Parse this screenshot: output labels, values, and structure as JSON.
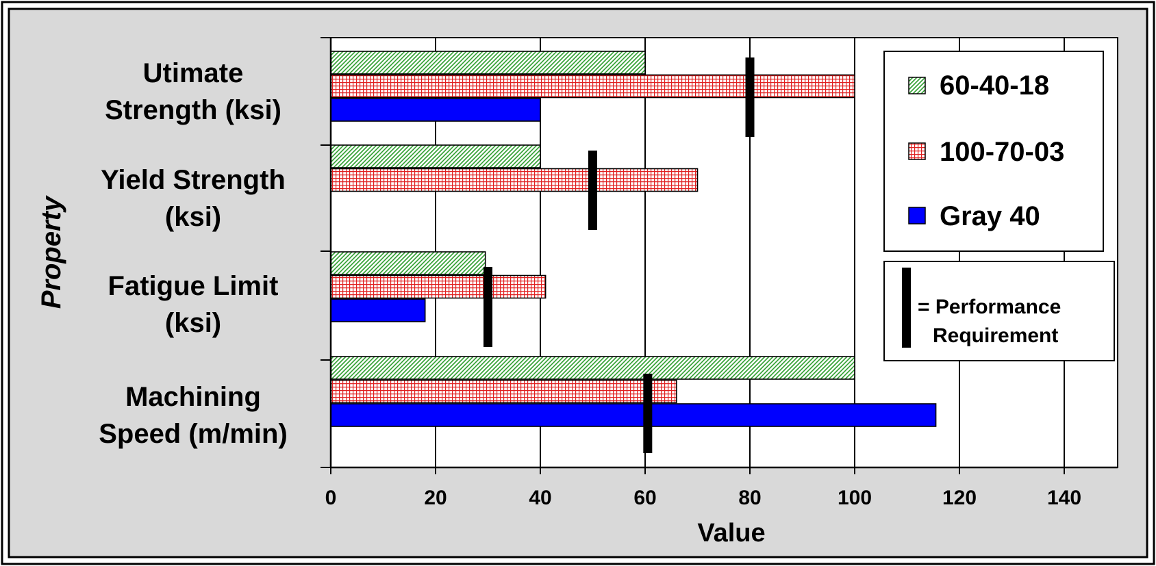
{
  "chart_data": {
    "type": "bar",
    "orientation": "horizontal",
    "categories": [
      [
        "Utimate",
        "Strength (ksi)"
      ],
      [
        "Yield Strength",
        "(ksi)"
      ],
      [
        "Fatigue Limit",
        "(ksi)"
      ],
      [
        "Machining",
        "Speed (m/min)"
      ]
    ],
    "series": [
      {
        "name": "60-40-18",
        "values": [
          60,
          40,
          29.5,
          100
        ],
        "pattern": "diagonal-hatch",
        "color": "#2e9e2e"
      },
      {
        "name": "100-70-03",
        "values": [
          100,
          70,
          41,
          66
        ],
        "pattern": "grid-hatch",
        "color": "#e02020"
      },
      {
        "name": "Gray 40",
        "values": [
          40,
          null,
          18,
          115.5
        ],
        "pattern": "solid",
        "color": "#0000ff"
      }
    ],
    "performance_requirements": [
      80,
      50,
      30,
      60.5
    ],
    "xlabel": "Value",
    "ylabel": "Property",
    "xlim": [
      0,
      150
    ],
    "xticks": [
      "0",
      "20",
      "40",
      "60",
      "80",
      "100",
      "120",
      "140"
    ],
    "xtick_values": [
      0,
      20,
      40,
      60,
      80,
      100,
      120,
      140
    ],
    "grid": "vertical",
    "legend_placement": "top-right",
    "requirement_legend": [
      "= Performance",
      "Requirement"
    ],
    "background_color": "#d9d9d9",
    "plot_background": "#ffffff"
  }
}
